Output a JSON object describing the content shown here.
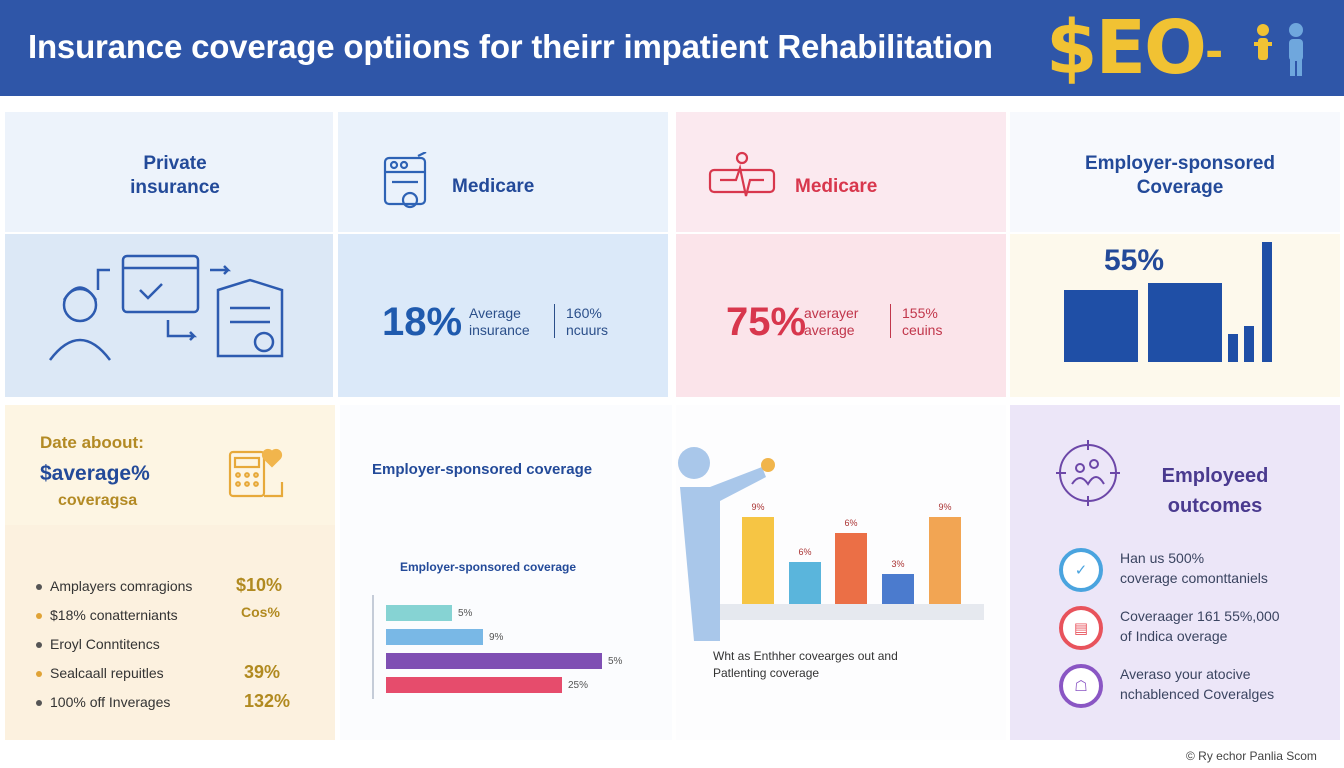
{
  "header": {
    "title": "Insurance coverage optiions for theirr  impatient Rehabilitation",
    "logo_text": "$EO",
    "logo_tail": "-"
  },
  "top_row": {
    "private": {
      "title_line1": "Private",
      "title_line2": "insurance"
    },
    "medicare_blue": {
      "title": "Medicare",
      "stat": "18%",
      "stat_label_line1": "Average",
      "stat_label_line2": "insurance",
      "side_line1": "160%",
      "side_line2": "ncuurs"
    },
    "medicare_red": {
      "title": "Medicare",
      "stat": "75%",
      "stat_label_line1": "averayer",
      "stat_label_line2": "average",
      "side_line1": "155%",
      "side_line2": "ceuins"
    },
    "employer": {
      "title_line1": "Employer-sponsored",
      "title_line2": "Coverage",
      "stat": "55%",
      "bars": [
        0.6,
        0.66,
        0.23,
        0.3,
        1.0
      ]
    }
  },
  "date_panel": {
    "line1": "Date aboout:",
    "line2": "$average%",
    "line3": "coveragsa",
    "items": [
      {
        "label": "Amplayers comragions",
        "value": "$10%"
      },
      {
        "label": "$18% conatterniants",
        "value": "Cos%"
      },
      {
        "label": "Eroyl Conntitencs",
        "value": ""
      },
      {
        "label": "Sealcaall repuitles",
        "value": "39%"
      },
      {
        "label": "100% off Inverages",
        "value": "132%"
      }
    ]
  },
  "employer_panel": {
    "title": "Employer-sponsored coverage",
    "sub_title": "Employer-sponsored coverage",
    "bars": [
      {
        "label": "5%",
        "fraction": 0.3,
        "color": "#86d3d3"
      },
      {
        "label": "9%",
        "fraction": 0.44,
        "color": "#79b8e6"
      },
      {
        "label": "5%",
        "fraction": 0.98,
        "color": "#7f4fb3"
      },
      {
        "label": "25%",
        "fraction": 0.8,
        "color": "#e64c6c"
      }
    ]
  },
  "chart_panel": {
    "bars": [
      {
        "label": "9%",
        "fraction": 0.97,
        "color": "#f6c544"
      },
      {
        "label": "6%",
        "fraction": 0.47,
        "color": "#5ab5dc"
      },
      {
        "label": "6%",
        "fraction": 0.79,
        "color": "#eb6f46"
      },
      {
        "label": "3%",
        "fraction": 0.33,
        "color": "#4b7bce"
      },
      {
        "label": "9%",
        "fraction": 0.97,
        "color": "#f2a553"
      }
    ],
    "caption_line1": "Wht as Enthher covearges out and",
    "caption_line2": "Patlenting coverage"
  },
  "outcomes": {
    "title_line1": "Employeed",
    "title_line2": "outcomes",
    "items": [
      {
        "line1": "Han us 500%",
        "line2": "coverage comonttaniels",
        "glyph": "✓",
        "color": "#4aa4df"
      },
      {
        "line1": "Coveraager 161 55%,000",
        "line2": "of Indica overage",
        "glyph": "▤",
        "color": "#e8535c"
      },
      {
        "line1": "Averaso your atocive",
        "line2": "nchablenced Coveralges",
        "glyph": "☖",
        "color": "#8a56c4"
      }
    ]
  },
  "footer": {
    "credit": "© Ry echor Panlia Scom"
  },
  "colors": {
    "header": "#2f56a8",
    "navy": "#234a99",
    "red": "#d8374d",
    "gold": "#f1c233"
  }
}
